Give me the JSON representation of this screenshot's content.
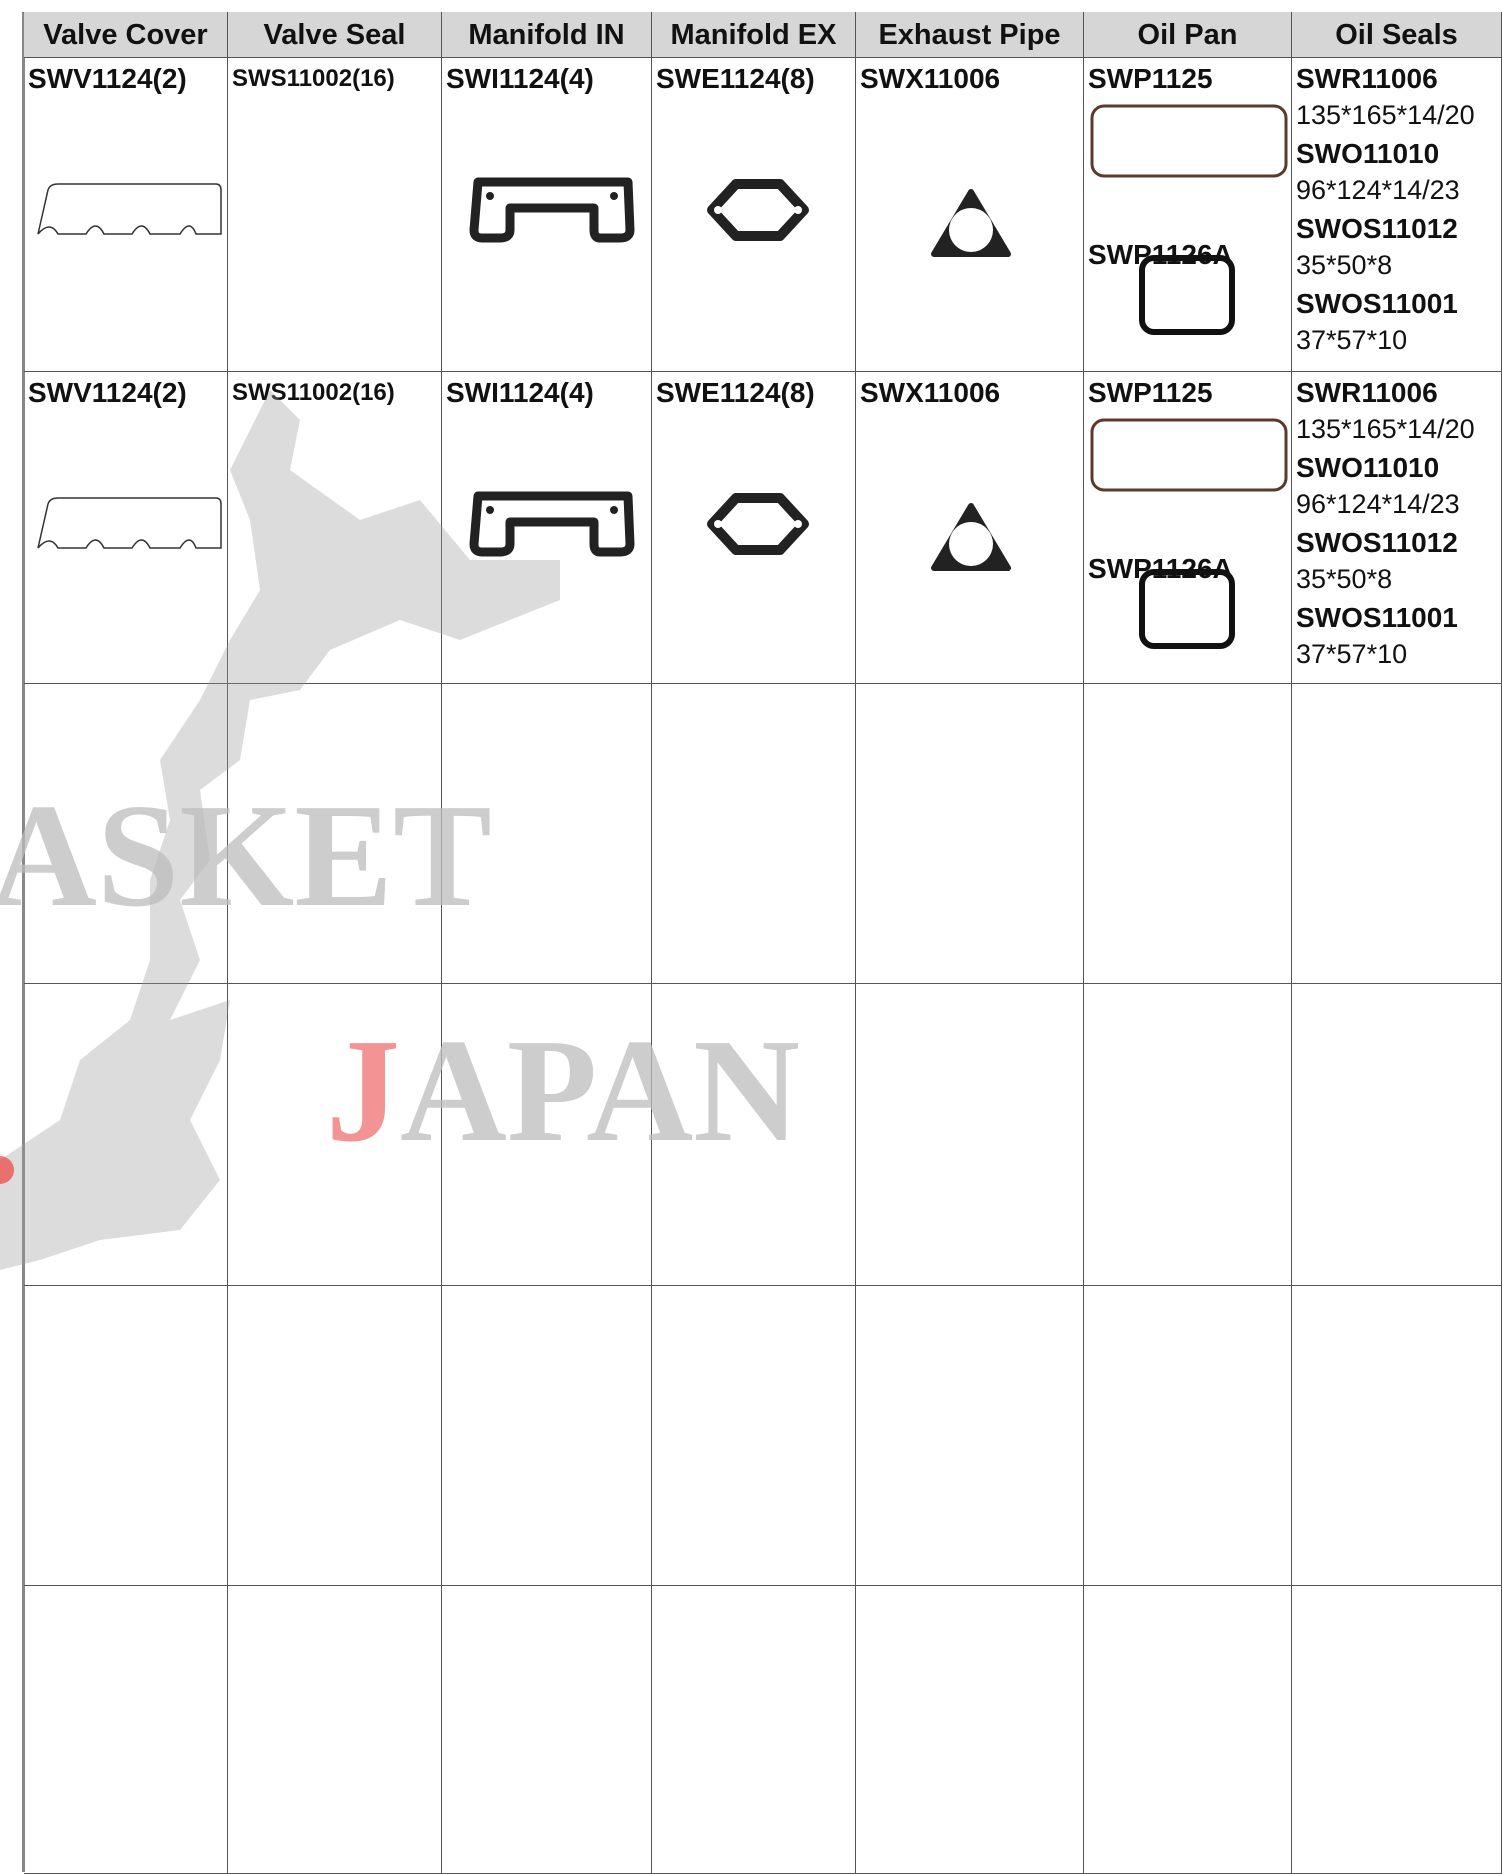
{
  "table": {
    "headers": [
      "Valve Cover",
      "Valve Seal",
      "Manifold IN",
      "Manifold EX",
      "Exhaust Pipe",
      "Oil Pan",
      "Oil Seals"
    ],
    "rows": [
      [
        "SWV1124(2)",
        "SWS11002(16)",
        "SWI1124(4)",
        "SWE1124(8)",
        "SWX11006",
        [
          "SWP1125",
          "SWP1126A"
        ],
        [
          {
            "code": "SWR11006",
            "size": "135*165*14/20"
          },
          {
            "code": "SWO11010",
            "size": "96*124*14/23"
          },
          {
            "code": "SWOS11012",
            "size": "35*50*8"
          },
          {
            "code": "SWOS11001",
            "size": "37*57*10"
          }
        ]
      ],
      [
        "SWV1124(2)",
        "SWS11002(16)",
        "SWI1124(4)",
        "SWE1124(8)",
        "SWX11006",
        [
          "SWP1125",
          "SWP1126A"
        ],
        [
          {
            "code": "SWR11006",
            "size": "135*165*14/20"
          },
          {
            "code": "SWO11010",
            "size": "96*124*14/23"
          },
          {
            "code": "SWOS11012",
            "size": "35*50*8"
          },
          {
            "code": "SWOS11001",
            "size": "37*57*10"
          }
        ]
      ]
    ]
  },
  "watermark": [
    "ASKET",
    "JAPAN"
  ]
}
